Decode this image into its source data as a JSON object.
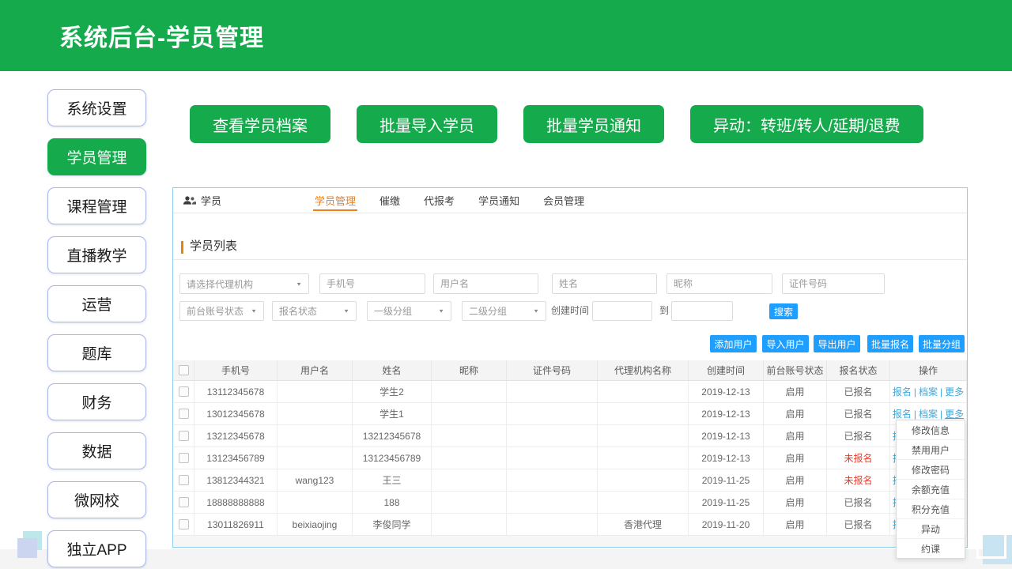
{
  "header": {
    "title": "系统后台-学员管理"
  },
  "sidebar": {
    "items": [
      {
        "label": "系统设置",
        "active": false
      },
      {
        "label": "学员管理",
        "active": true
      },
      {
        "label": "课程管理",
        "active": false
      },
      {
        "label": "直播教学",
        "active": false
      },
      {
        "label": "运营",
        "active": false
      },
      {
        "label": "题库",
        "active": false
      },
      {
        "label": "财务",
        "active": false
      },
      {
        "label": "数据",
        "active": false
      },
      {
        "label": "微网校",
        "active": false
      },
      {
        "label": "独立APP",
        "active": false
      }
    ]
  },
  "quick_actions": [
    {
      "label": "查看学员档案"
    },
    {
      "label": "批量导入学员"
    },
    {
      "label": "批量学员通知"
    },
    {
      "label": "异动：转班/转人/延期/退费"
    }
  ],
  "panel": {
    "module_label": "学员",
    "module_icon": "users-icon",
    "tabs": [
      {
        "label": "学员管理",
        "active": true
      },
      {
        "label": "催缴",
        "active": false
      },
      {
        "label": "代报考",
        "active": false
      },
      {
        "label": "学员通知",
        "active": false
      },
      {
        "label": "会员管理",
        "active": false
      }
    ],
    "section_title": "学员列表",
    "filters": {
      "agency_select": "请选择代理机构",
      "text_inputs": [
        "手机号",
        "用户名",
        "姓名",
        "昵称",
        "证件号码"
      ],
      "selects": [
        "前台账号状态",
        "报名状态",
        "一级分组",
        "二级分组"
      ],
      "created_label": "创建时间",
      "to_label": "到",
      "search_label": "搜索"
    },
    "bulk_buttons": [
      "添加用户",
      "导入用户",
      "导出用户",
      "批量报名",
      "批量分组"
    ],
    "table": {
      "columns": [
        "手机号",
        "用户名",
        "姓名",
        "昵称",
        "证件号码",
        "代理机构名称",
        "创建时间",
        "前台账号状态",
        "报名状态",
        "操作"
      ],
      "action_links": [
        "报名",
        "档案",
        "更多"
      ],
      "action_separator": "|",
      "rows": [
        {
          "phone": "13112345678",
          "username": "",
          "name": "学生2",
          "nickname": "",
          "id_number": "",
          "agency": "",
          "created": "2019-12-13",
          "account_status": "启用",
          "signup_status": "已报名",
          "signup_red": false,
          "menu_open": false
        },
        {
          "phone": "13012345678",
          "username": "",
          "name": "学生1",
          "nickname": "",
          "id_number": "",
          "agency": "",
          "created": "2019-12-13",
          "account_status": "启用",
          "signup_status": "已报名",
          "signup_red": false,
          "menu_open": true
        },
        {
          "phone": "13212345678",
          "username": "",
          "name": "13212345678",
          "nickname": "",
          "id_number": "",
          "agency": "",
          "created": "2019-12-13",
          "account_status": "启用",
          "signup_status": "已报名",
          "signup_red": false,
          "menu_open": false
        },
        {
          "phone": "13123456789",
          "username": "",
          "name": "13123456789",
          "nickname": "",
          "id_number": "",
          "agency": "",
          "created": "2019-12-13",
          "account_status": "启用",
          "signup_status": "未报名",
          "signup_red": true,
          "menu_open": false
        },
        {
          "phone": "13812344321",
          "username": "wang123",
          "name": "王三",
          "nickname": "",
          "id_number": "",
          "agency": "",
          "created": "2019-11-25",
          "account_status": "启用",
          "signup_status": "未报名",
          "signup_red": true,
          "menu_open": false
        },
        {
          "phone": "18888888888",
          "username": "",
          "name": "188",
          "nickname": "",
          "id_number": "",
          "agency": "",
          "created": "2019-11-25",
          "account_status": "启用",
          "signup_status": "已报名",
          "signup_red": false,
          "menu_open": false
        },
        {
          "phone": "13011826911",
          "username": "beixiaojing",
          "name": "李俊同学",
          "nickname": "",
          "id_number": "",
          "agency": "香港代理",
          "created": "2019-11-20",
          "account_status": "启用",
          "signup_status": "已报名",
          "signup_red": false,
          "menu_open": false
        }
      ]
    },
    "context_menu": {
      "items": [
        "修改信息",
        "禁用用户",
        "修改密码",
        "余额充值",
        "积分充值",
        "异动",
        "约课"
      ]
    }
  },
  "colors": {
    "brand_green": "#15AB4D",
    "accent_orange": "#EF7D1A",
    "action_blue": "#1E9FFF",
    "link_blue": "#3FA8DB",
    "status_red": "#E03E2D"
  }
}
